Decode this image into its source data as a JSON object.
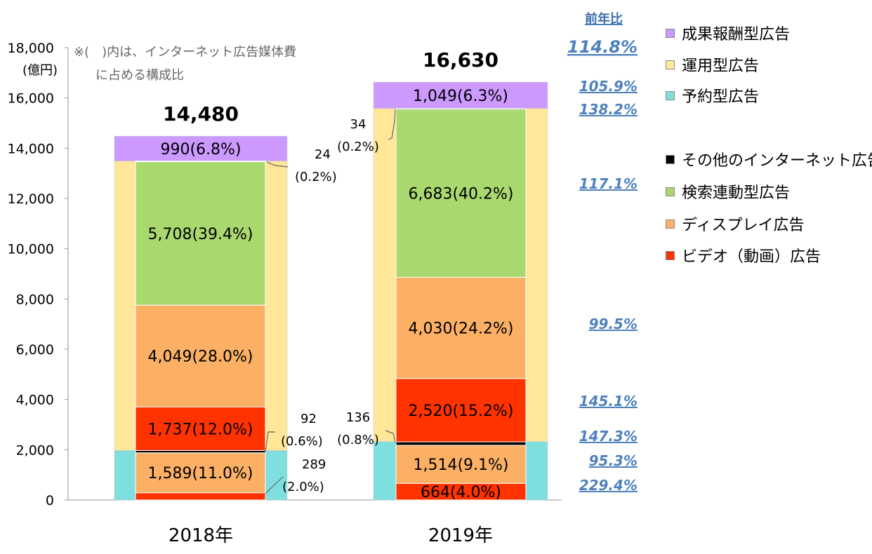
{
  "chart_data": {
    "type": "bar",
    "stacked": true,
    "categories": [
      "2018年",
      "2019年"
    ],
    "totals": [
      14480,
      16630
    ],
    "yunit": "(億円)",
    "ylim": [
      0,
      18000
    ],
    "yticks": [
      "0",
      "2,000",
      "4,000",
      "6,000",
      "8,000",
      "10,000",
      "12,000",
      "14,000",
      "16,000",
      "18,000"
    ],
    "note": [
      "※(　)内は、インターネット広告媒体費",
      "に占める構成比"
    ],
    "yoy_header": "前年比",
    "outer_series": [
      {
        "name": "予約型広告",
        "color": "#7fdfdf",
        "values": [
          1970,
          2326
        ]
      },
      {
        "name": "運用型広告",
        "color": "#ffe699",
        "values": [
          11520,
          13255
        ]
      },
      {
        "name": "成果報酬型広告",
        "color": "#cc99ff",
        "values": [
          990,
          1049
        ]
      }
    ],
    "inner_series": [
      {
        "name": "ビデオ（動画）広告",
        "color": "#ff3300",
        "values": [
          289,
          664
        ],
        "labels": [
          "",
          "664(4.0%)"
        ]
      },
      {
        "name": "ディスプレイ広告",
        "color": "#fbb065",
        "values": [
          1589,
          1514
        ],
        "labels": [
          "1,589(11.0%)",
          "1,514(9.1%)"
        ]
      },
      {
        "name": "その他のインターネット広告",
        "color": "#000000",
        "values": [
          92,
          136
        ],
        "labels": [
          "",
          ""
        ]
      },
      {
        "name": "ビデオ（動画）広告",
        "color": "#ff3300",
        "values": [
          1737,
          2520
        ],
        "labels": [
          "1,737(12.0%)",
          "2,520(15.2%)"
        ]
      },
      {
        "name": "ディスプレイ広告",
        "color": "#fbb065",
        "values": [
          4049,
          4030
        ],
        "labels": [
          "4,049(28.0%)",
          "4,030(24.2%)"
        ]
      },
      {
        "name": "検索連動型広告",
        "color": "#a9d86e",
        "values": [
          5708,
          6683
        ],
        "labels": [
          "5,708(39.4%)",
          "6,683(40.2%)"
        ]
      },
      {
        "name": "その他のインターネット広告",
        "color": "#000000",
        "values": [
          24,
          34
        ],
        "labels": [
          "",
          ""
        ]
      }
    ],
    "top_labels": [
      "990(6.8%)",
      "1,049(6.3%)"
    ],
    "callouts": [
      {
        "lines": [
          "24",
          "(0.2%)"
        ]
      },
      {
        "lines": [
          "92",
          "(0.6%)"
        ]
      },
      {
        "lines": [
          "289",
          "(2.0%)"
        ]
      },
      {
        "lines": [
          "34",
          "(0.2%)"
        ]
      },
      {
        "lines": [
          "136",
          "(0.8%)"
        ]
      }
    ],
    "yoy": [
      {
        "label": "114.8%",
        "value": 16630
      },
      {
        "label": "105.9%",
        "value": 15650
      },
      {
        "label": "138.2%",
        "value": 15560
      },
      {
        "label": "117.1%",
        "value": 12100
      },
      {
        "label": "99.5%",
        "value": 6510
      },
      {
        "label": "145.1%",
        "value": 3450
      },
      {
        "label": "147.3%",
        "value": 2540
      },
      {
        "label": "95.3%",
        "value": 1590
      },
      {
        "label": "229.4%",
        "value": 620
      }
    ]
  },
  "legend": {
    "items": [
      {
        "label": "成果報酬型広告",
        "color": "#cc99ff"
      },
      {
        "label": "運用型広告",
        "color": "#ffe699"
      },
      {
        "label": "予約型広告",
        "color": "#7fdfdf"
      },
      {
        "label": "その他のインターネット広告",
        "color": "#000000"
      },
      {
        "label": "検索連動型広告",
        "color": "#a9d86e"
      },
      {
        "label": "ディスプレイ広告",
        "color": "#fbb065"
      },
      {
        "label": "ビデオ（動画）広告",
        "color": "#ff3300"
      }
    ]
  }
}
